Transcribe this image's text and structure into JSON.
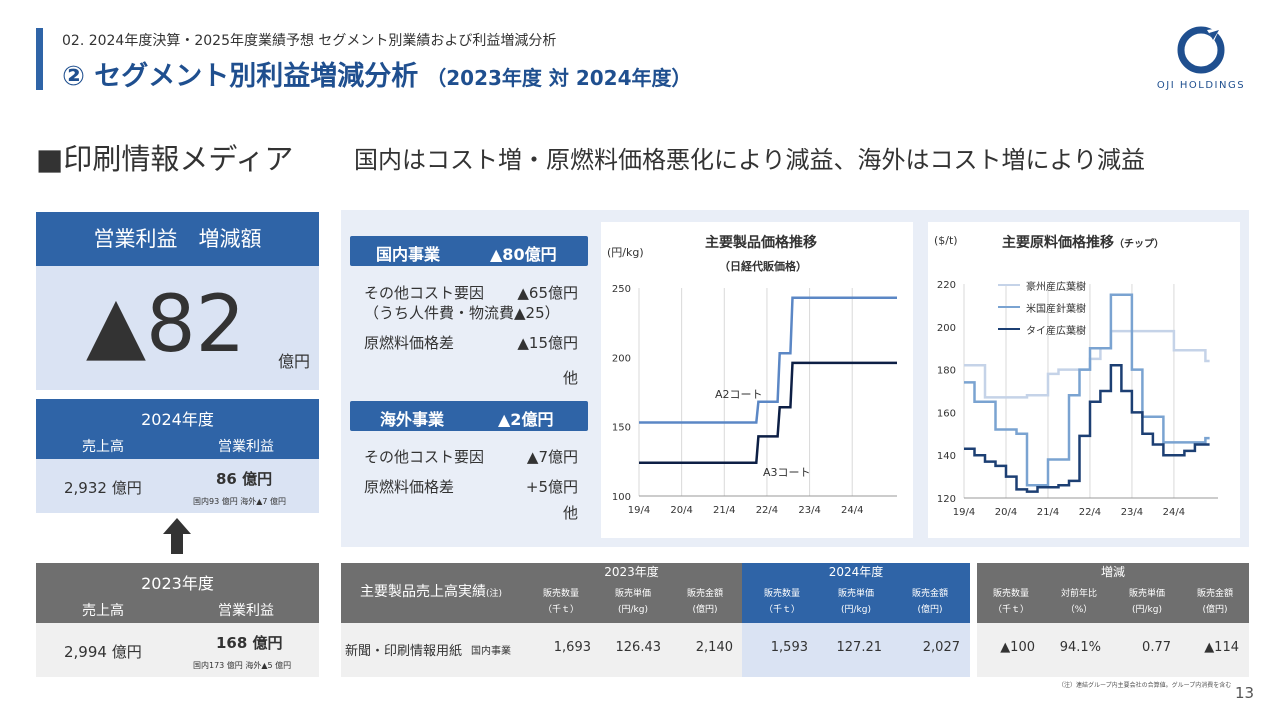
{
  "header": {
    "breadcrumb": "02. 2024年度決算・2025年度業績予想 セグメント別業績および利益増減分析",
    "title": "② セグメント別利益増減分析",
    "title_sub": "（2023年度 対 2024年度）",
    "logo_text": "OJI HOLDINGS"
  },
  "section": {
    "name": "■印刷情報メディア",
    "headline": "国内はコスト増・原燃料価格悪化により減益、海外はコスト増により減益"
  },
  "op_change": {
    "label": "営業利益　増減額",
    "value": "▲82",
    "unit": "億円"
  },
  "fy2024": {
    "title": "2024年度",
    "col_sales": "売上高",
    "col_op": "営業利益",
    "sales": "2,932 億円",
    "op": "86 億円",
    "op_detail": "国内93 億円 海外▲7 億円"
  },
  "fy2023": {
    "title": "2023年度",
    "col_sales": "売上高",
    "col_op": "営業利益",
    "sales": "2,994 億円",
    "op": "168 億円",
    "op_detail": "国内173 億円 海外▲5 億円"
  },
  "domestic": {
    "label": "国内事業",
    "value": "▲80億円",
    "f1_label": "その他コスト要因",
    "f1_value": "▲65億円",
    "f1_note": "（うち人件費・物流費▲25）",
    "f2_label": "原燃料価格差",
    "f2_value": "▲15億円",
    "f3": "他"
  },
  "overseas": {
    "label": "海外事業",
    "value": "▲2億円",
    "f1_label": "その他コスト要因",
    "f1_value": "▲7億円",
    "f2_label": "原燃料価格差",
    "f2_value": "+5億円",
    "f3": "他"
  },
  "chart_data": [
    {
      "type": "line",
      "title": "主要製品価格推移",
      "subtitle": "（日経代販価格）",
      "ylabel": "(円/kg)",
      "ylim": [
        100,
        250
      ],
      "yticks": [
        100,
        150,
        200,
        250
      ],
      "xticks": [
        "19/4",
        "20/4",
        "21/4",
        "22/4",
        "23/4",
        "24/4"
      ],
      "xlim": [
        2019.25,
        2025.3
      ],
      "grid": true,
      "series": [
        {
          "name": "A2コート",
          "color": "#5b87c5",
          "x": [
            2019.25,
            2022.0,
            2022.05,
            2022.5,
            2022.55,
            2022.8,
            2022.85,
            2025.3
          ],
          "y": [
            153,
            153,
            168,
            168,
            203,
            203,
            243,
            243
          ]
        },
        {
          "name": "A3コート",
          "color": "#0d1f45",
          "x": [
            2019.25,
            2022.0,
            2022.05,
            2022.5,
            2022.55,
            2022.8,
            2022.85,
            2025.3
          ],
          "y": [
            124,
            124,
            143,
            143,
            164,
            164,
            196,
            196
          ]
        }
      ]
    },
    {
      "type": "line",
      "title": "主要原料価格推移",
      "subtitle": "（チップ）",
      "ylabel": "($/t)",
      "ylim": [
        120,
        220
      ],
      "yticks": [
        120,
        140,
        160,
        180,
        200,
        220
      ],
      "xticks": [
        "19/4",
        "20/4",
        "21/4",
        "22/4",
        "23/4",
        "24/4"
      ],
      "xlim": [
        2019.25,
        2025.3
      ],
      "grid": true,
      "legend": "top-left",
      "series": [
        {
          "name": "豪州産広葉樹",
          "color": "#c5d3e8",
          "x": [
            2019.25,
            2019.5,
            2019.5,
            2019.75,
            2019.75,
            2020.75,
            2020.75,
            2021.25,
            2021.25,
            2021.5,
            2021.5,
            2022.25,
            2022.25,
            2022.5,
            2022.5,
            2022.75,
            2022.75,
            2023.25,
            2023.25,
            2024.0,
            2024.0,
            2024.25,
            2024.25,
            2024.75,
            2024.75,
            2025.0,
            2025.0,
            2025.1
          ],
          "y": [
            182,
            182,
            182,
            182,
            167,
            167,
            168,
            168,
            178,
            178,
            180,
            180,
            185,
            185,
            190,
            190,
            198,
            198,
            198,
            198,
            198,
            198,
            189,
            189,
            189,
            189,
            184,
            184
          ]
        },
        {
          "name": "米国産針葉樹",
          "color": "#7aa3d1",
          "x": [
            2019.25,
            2019.5,
            2019.5,
            2019.75,
            2019.75,
            2020.0,
            2020.0,
            2020.25,
            2020.25,
            2020.5,
            2020.5,
            2020.75,
            2020.75,
            2021.25,
            2021.25,
            2021.75,
            2021.75,
            2022.0,
            2022.0,
            2022.25,
            2022.25,
            2022.5,
            2022.5,
            2022.75,
            2022.75,
            2023.0,
            2023.0,
            2023.25,
            2023.25,
            2023.5,
            2023.5,
            2024.0,
            2024.0,
            2025.0,
            2025.0,
            2025.1
          ],
          "y": [
            174,
            174,
            165,
            165,
            165,
            165,
            152,
            152,
            152,
            152,
            150,
            150,
            126,
            126,
            138,
            138,
            168,
            168,
            180,
            180,
            190,
            190,
            190,
            190,
            215,
            215,
            215,
            215,
            180,
            180,
            158,
            158,
            146,
            146,
            148,
            148
          ]
        },
        {
          "name": "タイ産広葉樹",
          "color": "#1c3f73",
          "x": [
            2019.25,
            2019.5,
            2019.5,
            2019.75,
            2019.75,
            2020.0,
            2020.0,
            2020.25,
            2020.25,
            2020.5,
            2020.5,
            2020.75,
            2020.75,
            2021.0,
            2021.0,
            2021.5,
            2021.5,
            2021.75,
            2021.75,
            2022.0,
            2022.0,
            2022.25,
            2022.25,
            2022.5,
            2022.5,
            2022.75,
            2022.75,
            2023.0,
            2023.0,
            2023.25,
            2023.25,
            2023.5,
            2023.5,
            2023.75,
            2023.75,
            2024.0,
            2024.0,
            2024.5,
            2024.5,
            2024.75,
            2024.75,
            2025.1
          ],
          "y": [
            143,
            143,
            140,
            140,
            137,
            137,
            135,
            135,
            130,
            130,
            124,
            124,
            123,
            123,
            125,
            125,
            126,
            126,
            128,
            128,
            149,
            149,
            165,
            165,
            170,
            170,
            182,
            182,
            170,
            170,
            160,
            160,
            150,
            150,
            145,
            145,
            140,
            140,
            142,
            142,
            145,
            145
          ]
        }
      ]
    }
  ],
  "table": {
    "label": "主要製品売上高実績",
    "label_note": "(注)",
    "groups": [
      "2023年度",
      "2024年度",
      "増減"
    ],
    "cols_group": [
      [
        {
          "h1": "販売数量",
          "h2": "（千ｔ）"
        },
        {
          "h1": "販売単価",
          "h2": "(円/kg)"
        },
        {
          "h1": "販売金額",
          "h2": "(億円)"
        }
      ],
      [
        {
          "h1": "販売数量",
          "h2": "（千ｔ）"
        },
        {
          "h1": "販売単価",
          "h2": "(円/kg)"
        },
        {
          "h1": "販売金額",
          "h2": "(億円)"
        }
      ],
      [
        {
          "h1": "販売数量",
          "h2": "（千ｔ）"
        },
        {
          "h1": "対前年比",
          "h2": "（%）"
        },
        {
          "h1": "販売単価",
          "h2": "(円/kg)"
        },
        {
          "h1": "販売金額",
          "h2": "(億円)"
        }
      ]
    ],
    "row": {
      "name": "新聞・印刷情報用紙",
      "segment": "国内事業",
      "v2023": [
        "1,693",
        "126.43",
        "2,140"
      ],
      "v2024": [
        "1,593",
        "127.21",
        "2,027"
      ],
      "vdiff": [
        "▲100",
        "94.1%",
        "0.77",
        "▲114"
      ]
    },
    "footnote": "（注）連結グループ内主要会社の合算値。グループ内消費を含む"
  },
  "page_number": "13",
  "colors": {
    "accent": "#2f64a7",
    "light": "#dae3f3",
    "gray": "#6f6f6f",
    "panel": "#e9eef7"
  }
}
